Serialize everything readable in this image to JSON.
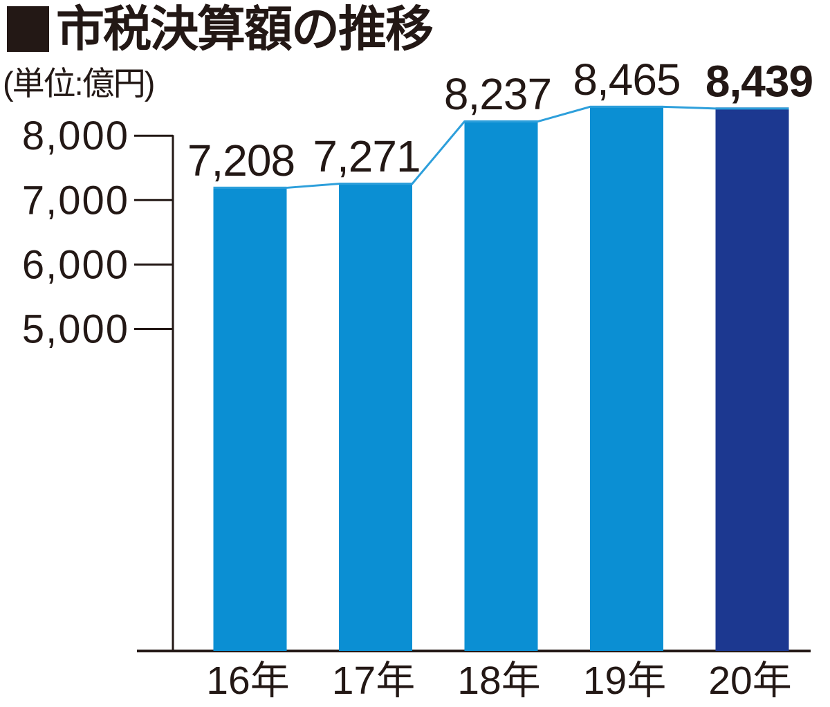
{
  "header": {
    "title": "市税決算額の推移",
    "unit_label": "(単位:億円)"
  },
  "icons": {
    "title_marker": "filled-black-square"
  },
  "colors": {
    "bar": "#0B8FD3",
    "highlight_bar": "#1C3890",
    "connector_line": "#2D9FDB",
    "axis": "#231815",
    "text": "#231815",
    "background": "#ffffff"
  },
  "chart_data": {
    "type": "bar",
    "title": "■市税決算額の推移",
    "subtitle": "(単位:億円)",
    "unit": "億円",
    "categories": [
      "16年",
      "17年",
      "18年",
      "19年",
      "20年"
    ],
    "values": [
      7208,
      7271,
      8237,
      8465,
      8439
    ],
    "value_labels": [
      "7,208",
      "7,271",
      "8,237",
      "8,465",
      "8,439"
    ],
    "highlight_index": 4,
    "ytick_values": [
      8000,
      7000,
      6000,
      5000
    ],
    "ytick_labels": [
      "8,000",
      "7,000",
      "6,000",
      "5,000"
    ],
    "ylim": [
      0,
      8600
    ],
    "grid": false,
    "legend_position": "none",
    "connector_line": true,
    "bar_color": "#0B8FD3",
    "highlight_bar_color": "#1C3890",
    "connector_line_color": "#2D9FDB",
    "axis_color": "#231815"
  }
}
